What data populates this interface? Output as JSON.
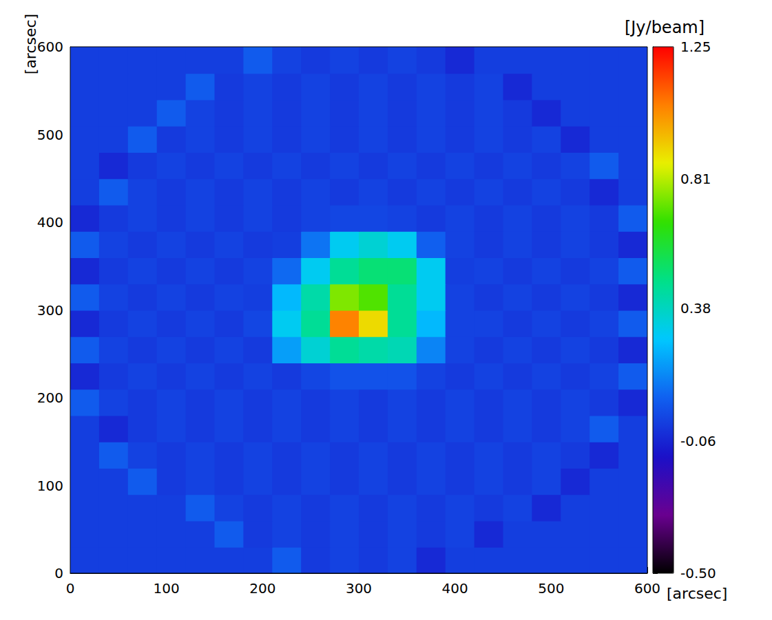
{
  "chart_data": {
    "type": "heatmap",
    "x_label": "[arcsec]",
    "y_label": "[arcsec]",
    "xlim": [
      0,
      600
    ],
    "xticks": [
      0,
      100,
      200,
      300,
      400,
      500,
      600
    ],
    "ylim": [
      0,
      600
    ],
    "yticks": [
      0,
      100,
      200,
      300,
      400,
      500,
      600
    ],
    "x": [
      15,
      45,
      75,
      105,
      135,
      165,
      195,
      225,
      255,
      285,
      315,
      345,
      375,
      405,
      435,
      465,
      495,
      525,
      555,
      585
    ],
    "y": [
      15,
      45,
      75,
      105,
      135,
      165,
      195,
      225,
      255,
      285,
      315,
      345,
      375,
      405,
      435,
      465,
      495,
      525,
      555,
      585
    ],
    "values": [
      [
        0,
        0,
        0,
        0,
        0,
        0,
        0,
        0.07,
        -0.01,
        0.01,
        -0.01,
        0.01,
        -0.05,
        0,
        0,
        0,
        0,
        0,
        0,
        0
      ],
      [
        0,
        0,
        0,
        0,
        0,
        0.07,
        -0.01,
        0.01,
        -0.01,
        0.01,
        -0.01,
        0.01,
        -0.01,
        0.01,
        -0.05,
        0,
        0,
        0,
        0,
        0
      ],
      [
        0,
        0,
        0,
        0,
        0.07,
        0.01,
        -0.01,
        0.01,
        -0.01,
        0.01,
        -0.01,
        0.01,
        -0.01,
        0.01,
        -0.01,
        0.01,
        -0.05,
        0,
        0,
        0
      ],
      [
        0,
        0,
        0.07,
        -0.01,
        0.01,
        -0.01,
        0.01,
        -0.01,
        0.01,
        -0.01,
        0.01,
        -0.01,
        0.01,
        -0.01,
        0.01,
        -0.01,
        0.01,
        -0.05,
        0,
        0
      ],
      [
        0,
        0.07,
        0.01,
        -0.01,
        0.01,
        -0.01,
        0.01,
        -0.01,
        0.01,
        -0.01,
        0.01,
        -0.01,
        0.01,
        -0.01,
        0.01,
        -0.01,
        0.01,
        -0.01,
        -0.05,
        0
      ],
      [
        0,
        -0.05,
        -0.01,
        0.01,
        -0.01,
        0.01,
        -0.01,
        0.01,
        -0.01,
        0.01,
        -0.01,
        0.01,
        -0.01,
        0.01,
        -0.01,
        0.01,
        -0.01,
        0.01,
        0.07,
        0
      ],
      [
        0.07,
        0.01,
        -0.01,
        0.01,
        -0.01,
        0.01,
        -0.01,
        0.01,
        -0.01,
        0.01,
        -0.01,
        0.01,
        -0.01,
        0.01,
        -0.01,
        0.01,
        -0.01,
        0.01,
        -0.01,
        -0.05
      ],
      [
        -0.05,
        -0.01,
        0.01,
        -0.01,
        0.01,
        -0.01,
        0.01,
        -0.01,
        0.02,
        0.05,
        0.05,
        0.05,
        0.01,
        -0.01,
        0.01,
        -0.01,
        0.01,
        -0.01,
        0.01,
        0.07
      ],
      [
        0.07,
        0.01,
        -0.01,
        0.01,
        -0.01,
        0.01,
        -0.01,
        0.2,
        0.35,
        0.45,
        0.42,
        0.4,
        0.15,
        0.01,
        -0.01,
        0.01,
        -0.01,
        0.01,
        -0.01,
        -0.05
      ],
      [
        -0.05,
        -0.01,
        0.01,
        -0.01,
        0.01,
        -0.01,
        0.02,
        0.3,
        0.45,
        1.05,
        0.9,
        0.45,
        0.25,
        0.01,
        0.01,
        -0.01,
        0.01,
        -0.01,
        0.01,
        0.07
      ],
      [
        0.07,
        0.01,
        -0.01,
        0.01,
        -0.01,
        0.01,
        0,
        0.25,
        0.42,
        0.75,
        0.7,
        0.45,
        0.3,
        0.01,
        -0.01,
        0.01,
        -0.01,
        0.01,
        -0.01,
        -0.05
      ],
      [
        -0.05,
        -0.01,
        0.01,
        -0.01,
        0.01,
        -0.01,
        0.01,
        0.1,
        0.3,
        0.45,
        0.5,
        0.5,
        0.3,
        0,
        0.01,
        -0.01,
        0.01,
        -0.01,
        0.01,
        0.07
      ],
      [
        0.07,
        0.01,
        -0.01,
        0.01,
        -0.01,
        0.01,
        -0.01,
        0,
        0.12,
        0.3,
        0.35,
        0.3,
        0.08,
        0.01,
        -0.01,
        0.01,
        -0.01,
        0.01,
        -0.01,
        -0.05
      ],
      [
        -0.05,
        -0.01,
        0.01,
        -0.01,
        0.01,
        -0.01,
        0.01,
        -0.01,
        0.01,
        0.02,
        0.02,
        0.01,
        -0.01,
        0.01,
        -0.01,
        0.01,
        -0.01,
        0.01,
        -0.01,
        0.07
      ],
      [
        0,
        0.07,
        0.01,
        -0.01,
        0.01,
        -0.01,
        0.01,
        -0.01,
        0.01,
        -0.01,
        0.01,
        -0.01,
        0.01,
        -0.01,
        0.01,
        -0.01,
        0.01,
        -0.01,
        -0.05,
        0
      ],
      [
        0,
        -0.05,
        -0.01,
        0.01,
        -0.01,
        0.01,
        -0.01,
        0.01,
        -0.01,
        0.01,
        -0.01,
        0.01,
        -0.01,
        0.01,
        -0.01,
        0.01,
        -0.01,
        0.01,
        0.07,
        0
      ],
      [
        0,
        0,
        0.07,
        -0.01,
        0.01,
        -0.01,
        0.01,
        -0.01,
        0.01,
        -0.01,
        0.01,
        -0.01,
        0.01,
        -0.01,
        0.01,
        -0.01,
        0.01,
        -0.05,
        0,
        0
      ],
      [
        0,
        0,
        0,
        0.07,
        0.01,
        -0.01,
        0.01,
        -0.01,
        0.01,
        -0.01,
        0.01,
        -0.01,
        0.01,
        -0.01,
        0.01,
        -0.01,
        -0.05,
        0,
        0,
        0
      ],
      [
        0,
        0,
        0,
        0,
        0.07,
        -0.01,
        0.01,
        -0.01,
        0.01,
        -0.01,
        0.01,
        -0.01,
        0.01,
        -0.01,
        0.01,
        -0.05,
        0,
        0,
        0,
        0
      ],
      [
        0,
        0,
        0,
        0,
        0,
        0,
        0.07,
        0.01,
        -0.01,
        0.01,
        -0.01,
        0.01,
        -0.01,
        -0.05,
        0,
        0,
        0,
        0,
        0,
        0
      ]
    ],
    "colorbar": {
      "label": "[Jy/beam]",
      "range": [
        -0.5,
        1.25
      ],
      "ticks": [
        {
          "value": -0.5,
          "label": "-0.50"
        },
        -0.06,
        0.38,
        0.81,
        1.25
      ]
    }
  }
}
